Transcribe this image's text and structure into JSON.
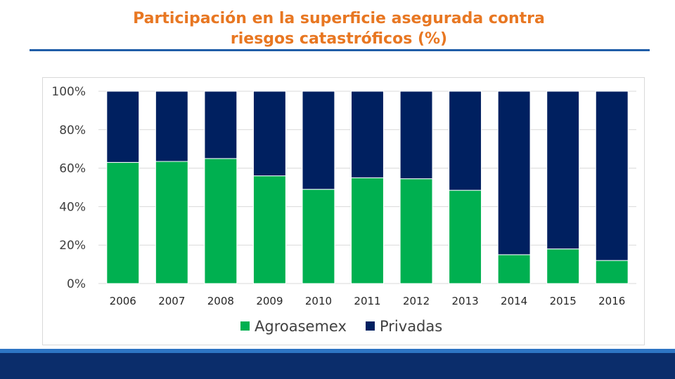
{
  "slide": {
    "title_line1": "Participación en la superficie asegurada contra",
    "title_line2": "riesgos catastróficos (%)",
    "accent_color": "#e87722",
    "rule_color": "#1f5da8",
    "footer_color": "#0b2d6b"
  },
  "chart_data": {
    "type": "bar",
    "stacked": true,
    "title": "",
    "xlabel": "",
    "ylabel": "",
    "ylim": [
      0,
      100
    ],
    "y_ticks": [
      "0%",
      "20%",
      "40%",
      "60%",
      "80%",
      "100%"
    ],
    "grid": true,
    "legend_position": "bottom",
    "categories": [
      "2006",
      "2007",
      "2008",
      "2009",
      "2010",
      "2011",
      "2012",
      "2013",
      "2014",
      "2015",
      "2016"
    ],
    "series": [
      {
        "name": "Agroasemex",
        "color": "#00b050",
        "values": [
          63,
          63.5,
          65,
          56,
          49,
          55,
          54.5,
          48.5,
          15,
          18,
          12
        ]
      },
      {
        "name": "Privadas",
        "color": "#002060",
        "values": [
          37,
          36.5,
          35,
          44,
          51,
          45,
          45.5,
          51.5,
          85,
          82,
          88
        ]
      }
    ]
  }
}
